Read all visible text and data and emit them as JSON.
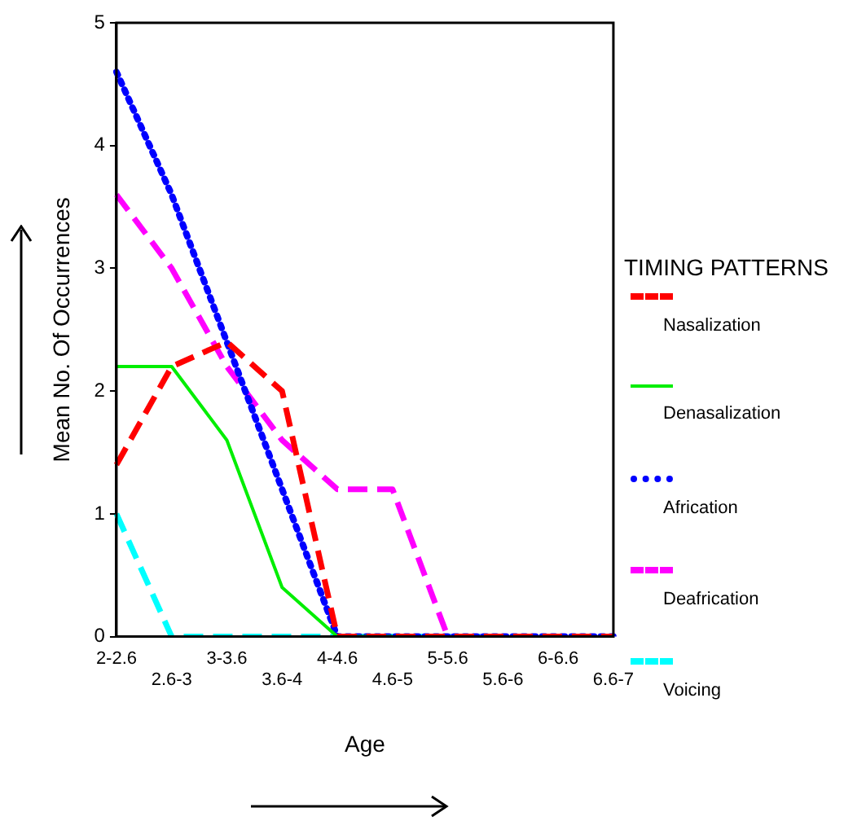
{
  "chart_data": {
    "type": "line",
    "xlabel": "Age",
    "ylabel": "Mean No. Of Occurrences",
    "legend_title": "TIMING PATTERNS",
    "categories": [
      "2-2.6",
      "2.6-3",
      "3-3.6",
      "3.6-4",
      "4-4.6",
      "4.6-5",
      "5-5.6",
      "5.6-6",
      "6-6.6",
      "6.6-7"
    ],
    "ylim": [
      0,
      5
    ],
    "yticks": [
      0,
      1,
      2,
      3,
      4,
      5
    ],
    "grid": false,
    "legend": "right",
    "marker": "none",
    "series": [
      {
        "name": "Nasalization",
        "color": "#ff0000",
        "line_style": "dashed",
        "values": [
          1.4,
          2.2,
          2.4,
          2.0,
          0,
          0,
          0,
          0,
          0,
          0
        ]
      },
      {
        "name": "Denasalization",
        "color": "#00ee00",
        "line_style": "solid",
        "values": [
          2.2,
          2.2,
          1.6,
          0.4,
          0,
          0,
          null,
          null,
          null,
          null
        ]
      },
      {
        "name": "Africation",
        "color": "#0000ff",
        "line_style": "dotted",
        "values": [
          4.6,
          3.6,
          2.4,
          1.2,
          0,
          0,
          0,
          0,
          0,
          0
        ]
      },
      {
        "name": "Deafrication",
        "color": "#ff00ff",
        "line_style": "dashed",
        "values": [
          3.6,
          3.0,
          2.2,
          1.6,
          1.2,
          1.2,
          0,
          0,
          null,
          null
        ]
      },
      {
        "name": "Voicing",
        "color": "#00ffff",
        "line_style": "dashed",
        "values": [
          1.0,
          0,
          0,
          0,
          0,
          0,
          0,
          0,
          null,
          null
        ]
      }
    ]
  }
}
